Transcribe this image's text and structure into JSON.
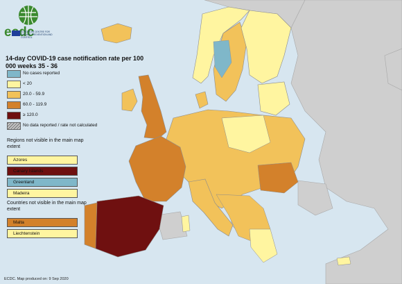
{
  "header": {
    "logo_text": "ecdc",
    "logo_subtext": "EUROPEAN CENTRE FOR DISEASE PREVENTION AND CONTROL",
    "title": "14-day COVID-19 case notification rate per 100 000 weeks 35 - 36"
  },
  "legend": {
    "items": [
      {
        "label": "No cases reported",
        "color": "#7fb7c9"
      },
      {
        "label": "< 20",
        "color": "#fff5a0"
      },
      {
        "label": "20.0 - 59.9",
        "color": "#f2c25a"
      },
      {
        "label": "60.0 - 119.9",
        "color": "#d3812b"
      },
      {
        "label": "≥ 120.0",
        "color": "#6f1010"
      },
      {
        "label": "No data reported / rate not calculated",
        "color": "hatched"
      }
    ]
  },
  "regions_not_visible": {
    "title": "Regions not visible in the main map extent",
    "items": [
      {
        "label": "Azores",
        "color": "#fff5a0"
      },
      {
        "label": "Canary Islands",
        "color": "#6f1010"
      },
      {
        "label": "Greenland",
        "color": "#7fb7c9"
      },
      {
        "label": "Madeira",
        "color": "#fff5a0"
      }
    ]
  },
  "countries_not_visible": {
    "title": "Countries not visible in the main map extent",
    "items": [
      {
        "label": "Malta",
        "color": "#d3812b"
      },
      {
        "label": "Liechtenstein",
        "color": "#fff5a0"
      }
    ]
  },
  "footer": {
    "text": "ECDC. Map produced on: 9 Sep 2020"
  },
  "colors": {
    "sea": "#d7e6f0",
    "non_eu_land": "#cfcfcf",
    "border": "#8c8c8c",
    "logo_green": "#3b8a2f"
  }
}
